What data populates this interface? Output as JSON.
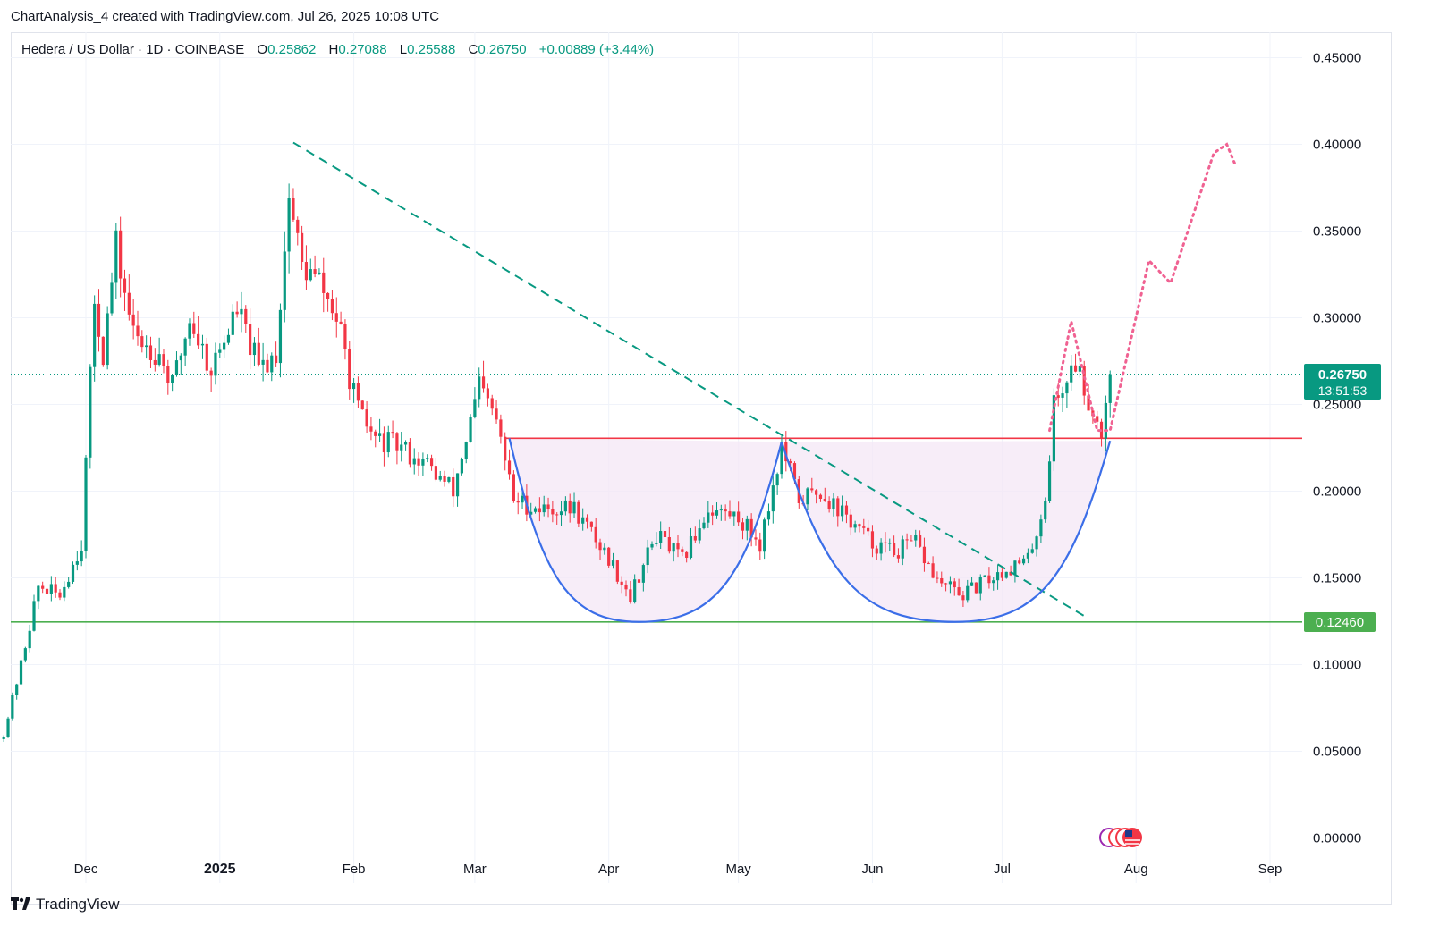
{
  "header": {
    "title": "ChartAnalysis_4 created with TradingView.com, Jul 26, 2025 10:08 UTC"
  },
  "legend": {
    "symbol": "Hedera / US Dollar · 1D · COINBASE",
    "open_label": "O",
    "open": "0.25862",
    "high_label": "H",
    "high": "0.27088",
    "low_label": "L",
    "low": "0.25588",
    "close_label": "C",
    "close": "0.26750",
    "change": "+0.00889 (+3.44%)"
  },
  "price_tag": {
    "price": "0.26750",
    "countdown": "13:51:53",
    "color": "#089981"
  },
  "support_tag": {
    "price": "0.12460",
    "color": "#4caf50"
  },
  "brand": {
    "name": "TradingView"
  },
  "colors": {
    "up": "#089981",
    "down": "#f23645",
    "trendline": "#089981",
    "resistance": "#f23645",
    "support": "#4caf50",
    "cup_stroke": "#3b6ee8",
    "cup_fill": "#f3e5f5",
    "projection": "#f06292",
    "grid": "#f0f3fa"
  },
  "chart_data": {
    "type": "candlestick",
    "ylim": [
      0,
      0.47
    ],
    "yticks": [
      "0.00000",
      "0.05000",
      "0.10000",
      "0.15000",
      "0.20000",
      "0.25000",
      "0.30000",
      "0.35000",
      "0.40000",
      "0.45000"
    ],
    "xticks": [
      {
        "label": "Dec",
        "date": "2024-12-01",
        "bold": false
      },
      {
        "label": "2025",
        "date": "2025-01-01",
        "bold": true
      },
      {
        "label": "Feb",
        "date": "2025-02-01",
        "bold": false
      },
      {
        "label": "Mar",
        "date": "2025-03-01",
        "bold": false
      },
      {
        "label": "Apr",
        "date": "2025-04-01",
        "bold": false
      },
      {
        "label": "May",
        "date": "2025-05-01",
        "bold": false
      },
      {
        "label": "Jun",
        "date": "2025-06-01",
        "bold": false
      },
      {
        "label": "Jul",
        "date": "2025-07-01",
        "bold": false
      },
      {
        "label": "Aug",
        "date": "2025-08-01",
        "bold": false
      },
      {
        "label": "Sep",
        "date": "2025-09-01",
        "bold": false
      }
    ],
    "date_range": [
      "2024-11-12",
      "2025-09-10"
    ],
    "last_close": 0.2675,
    "resistance": 0.2305,
    "support": 0.1246,
    "price_path": [
      [
        "2024-11-12",
        0.06
      ],
      [
        "2024-11-16",
        0.1
      ],
      [
        "2024-11-20",
        0.145
      ],
      [
        "2024-11-25",
        0.14
      ],
      [
        "2024-11-30",
        0.17
      ],
      [
        "2024-12-03",
        0.31
      ],
      [
        "2024-12-05",
        0.28
      ],
      [
        "2024-12-08",
        0.34
      ],
      [
        "2024-12-12",
        0.29
      ],
      [
        "2024-12-18",
        0.28
      ],
      [
        "2024-12-21",
        0.26
      ],
      [
        "2024-12-25",
        0.3
      ],
      [
        "2024-12-30",
        0.27
      ],
      [
        "2025-01-05",
        0.305
      ],
      [
        "2025-01-10",
        0.27
      ],
      [
        "2025-01-14",
        0.28
      ],
      [
        "2025-01-17",
        0.37
      ],
      [
        "2025-01-20",
        0.33
      ],
      [
        "2025-01-24",
        0.32
      ],
      [
        "2025-01-28",
        0.3
      ],
      [
        "2025-02-02",
        0.245
      ],
      [
        "2025-02-06",
        0.23
      ],
      [
        "2025-02-12",
        0.225
      ],
      [
        "2025-02-18",
        0.215
      ],
      [
        "2025-02-24",
        0.2
      ],
      [
        "2025-03-02",
        0.26
      ],
      [
        "2025-03-06",
        0.24
      ],
      [
        "2025-03-10",
        0.195
      ],
      [
        "2025-03-16",
        0.19
      ],
      [
        "2025-03-24",
        0.19
      ],
      [
        "2025-03-31",
        0.165
      ],
      [
        "2025-04-06",
        0.14
      ],
      [
        "2025-04-12",
        0.175
      ],
      [
        "2025-04-18",
        0.16
      ],
      [
        "2025-04-24",
        0.19
      ],
      [
        "2025-05-01",
        0.185
      ],
      [
        "2025-05-06",
        0.17
      ],
      [
        "2025-05-11",
        0.225
      ],
      [
        "2025-05-15",
        0.195
      ],
      [
        "2025-05-20",
        0.2
      ],
      [
        "2025-05-26",
        0.185
      ],
      [
        "2025-06-01",
        0.17
      ],
      [
        "2025-06-06",
        0.165
      ],
      [
        "2025-06-11",
        0.17
      ],
      [
        "2025-06-16",
        0.148
      ],
      [
        "2025-06-22",
        0.14
      ],
      [
        "2025-06-27",
        0.148
      ],
      [
        "2025-07-02",
        0.155
      ],
      [
        "2025-07-07",
        0.16
      ],
      [
        "2025-07-11",
        0.195
      ],
      [
        "2025-07-13",
        0.25
      ],
      [
        "2025-07-16",
        0.265
      ],
      [
        "2025-07-18",
        0.275
      ],
      [
        "2025-07-20",
        0.26
      ],
      [
        "2025-07-23",
        0.24
      ],
      [
        "2025-07-24",
        0.235
      ],
      [
        "2025-07-26",
        0.2675
      ]
    ],
    "trendline": [
      [
        "2025-01-18",
        0.401
      ],
      [
        "2025-07-20",
        0.128
      ]
    ],
    "cup_left": {
      "start": [
        "2025-03-09",
        0.2305
      ],
      "bottom": [
        "2025-04-08",
        0.1246
      ],
      "end": [
        "2025-05-11",
        0.2285
      ]
    },
    "cup_right": {
      "start": [
        "2025-05-11",
        0.2285
      ],
      "bottom": [
        "2025-06-20",
        0.1246
      ],
      "end": [
        "2025-07-26",
        0.229
      ]
    },
    "projection": [
      [
        "2025-07-12",
        0.235
      ],
      [
        "2025-07-17",
        0.298
      ],
      [
        "2025-07-23",
        0.235
      ],
      [
        "2025-07-26",
        0.235
      ],
      [
        "2025-08-04",
        0.333
      ],
      [
        "2025-08-09",
        0.32
      ],
      [
        "2025-08-19",
        0.395
      ],
      [
        "2025-08-22",
        0.4
      ],
      [
        "2025-08-24",
        0.388
      ]
    ],
    "range_ellipse": {
      "start": "2025-03-08",
      "end": "2025-05-11",
      "top": 0.2305,
      "bottom": 0.1246
    }
  }
}
